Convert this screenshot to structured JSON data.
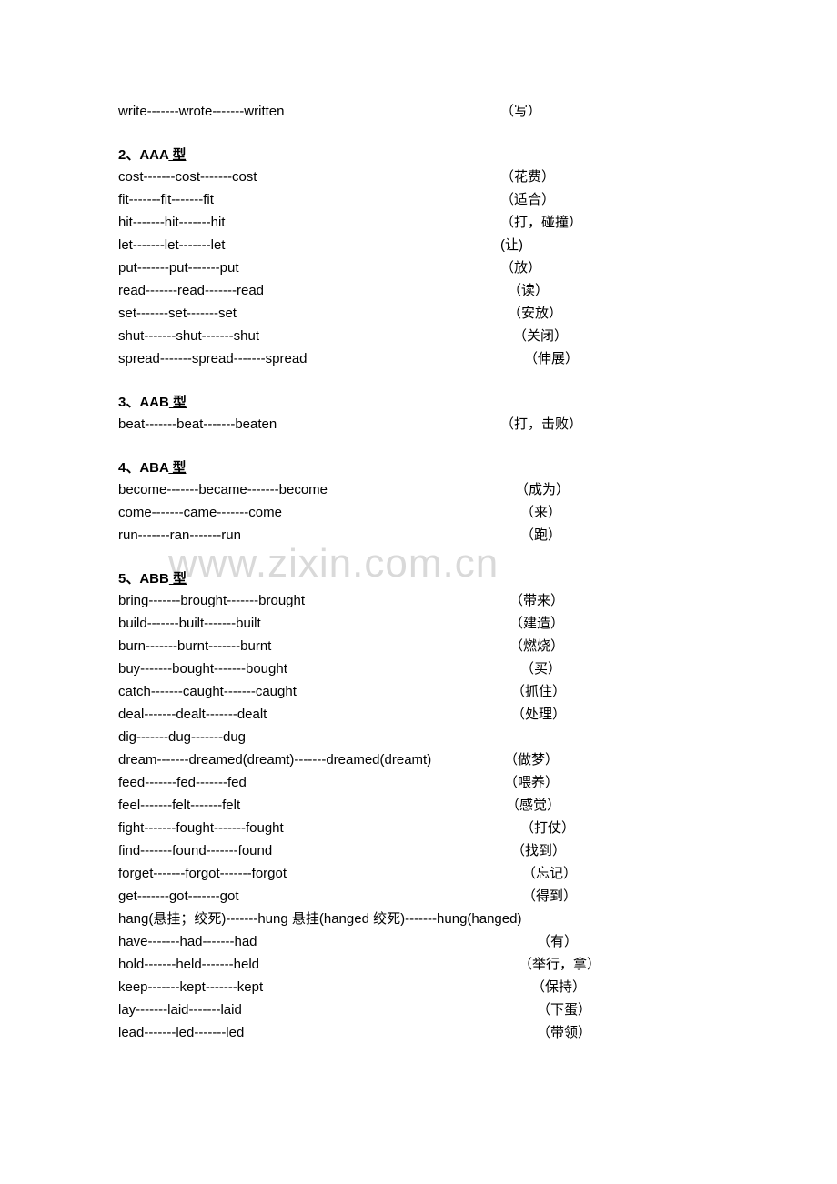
{
  "watermark": "www.zixin.com.cn",
  "topRow": {
    "left": "write-------wrote-------written",
    "right": "（写）"
  },
  "sections": [
    {
      "heading": {
        "num": "2、",
        "bold": "AAA",
        "underline": "型"
      },
      "rows": [
        {
          "left": "cost-------cost-------cost",
          "right": "（花费）"
        },
        {
          "left": "fit-------fit-------fit",
          "right": "（适合）"
        },
        {
          "left": "hit-------hit-------hit",
          "right": "（打，碰撞）",
          "rightPad": -12
        },
        {
          "left": "let-------let-------let",
          "right": "(让)"
        },
        {
          "left": "put-------put-------put",
          "right": "（放）"
        },
        {
          "left": "read-------read-------read",
          "right": "（读）",
          "rightPad": 8
        },
        {
          "left": "set-------set-------set",
          "right": "（安放）",
          "rightPad": 8
        },
        {
          "left": "shut-------shut-------shut",
          "right": "（关闭）",
          "rightPad": 14
        },
        {
          "left": "spread-------spread-------spread",
          "right": "（伸展）",
          "rightPad": 26
        }
      ]
    },
    {
      "heading": {
        "num": "3、",
        "bold": "AAB",
        "underline": "型"
      },
      "rows": [
        {
          "left": "beat-------beat-------beaten",
          "right": "（打，击败）",
          "rightPad": -4
        }
      ]
    },
    {
      "heading": {
        "num": "4、",
        "bold": "ABA",
        "underline": "型"
      },
      "rows": [
        {
          "left": "become-------became-------become",
          "right": "（成为）",
          "rightPad": 16
        },
        {
          "left": "come-------came-------come",
          "right": "（来）",
          "rightPad": 22
        },
        {
          "left": "run-------ran-------run",
          "right": "（跑）",
          "rightPad": 22
        }
      ]
    },
    {
      "heading": {
        "num": "5、",
        "bold": "ABB",
        "underline": "型"
      },
      "rows": [
        {
          "left": "bring-------brought-------brought",
          "right": "（带来）",
          "rightPad": 10
        },
        {
          "left": "build-------built-------built",
          "right": "（建造）",
          "rightPad": 10
        },
        {
          "left": "burn-------burnt-------burnt",
          "right": "（燃烧）",
          "rightPad": 10
        },
        {
          "left": "buy-------bought-------bought",
          "right": "（买）",
          "rightPad": 22
        },
        {
          "left": "catch-------caught-------caught",
          "right": "（抓住）",
          "rightPad": 12
        },
        {
          "left": "deal-------dealt-------dealt",
          "right": "（处理）",
          "rightPad": 12
        },
        {
          "left": "dig-------dug-------dug",
          "right": ""
        },
        {
          "left": "dream-------dreamed(dreamt)-------dreamed(dreamt)",
          "right": "（做梦）",
          "rightPad": 4,
          "leftWide": true
        },
        {
          "left": "feed-------fed-------fed",
          "right": "（喂养）",
          "rightPad": 4
        },
        {
          "left": "feel-------felt-------felt",
          "right": "（感觉）",
          "rightPad": 6
        },
        {
          "left": "fight-------fought-------fought",
          "right": "（打仗）",
          "rightPad": 22
        },
        {
          "left": "find-------found-------found",
          "right": "（找到）",
          "rightPad": 12
        },
        {
          "left": "forget-------forgot-------forgot",
          "right": "（忘记）",
          "rightPad": 24
        },
        {
          "left": "get-------got-------got",
          "right": "（得到）",
          "rightPad": 24
        },
        {
          "left": "hang(悬挂；绞死)-------hung 悬挂(hanged 绞死)-------hung(hanged)",
          "right": "",
          "full": true
        },
        {
          "left": "have-------had-------had",
          "right": "（有）",
          "rightPad": 40
        },
        {
          "left": "hold-------held-------held",
          "right": "（举行，拿）",
          "rightPad": 20
        },
        {
          "left": "keep-------kept-------kept",
          "right": "（保持）",
          "rightPad": 34
        },
        {
          "left": "lay-------laid-------laid",
          "right": "（下蛋）",
          "rightPad": 40
        },
        {
          "left": "lead-------led-------led",
          "right": "（带领）",
          "rightPad": 40
        }
      ]
    }
  ]
}
